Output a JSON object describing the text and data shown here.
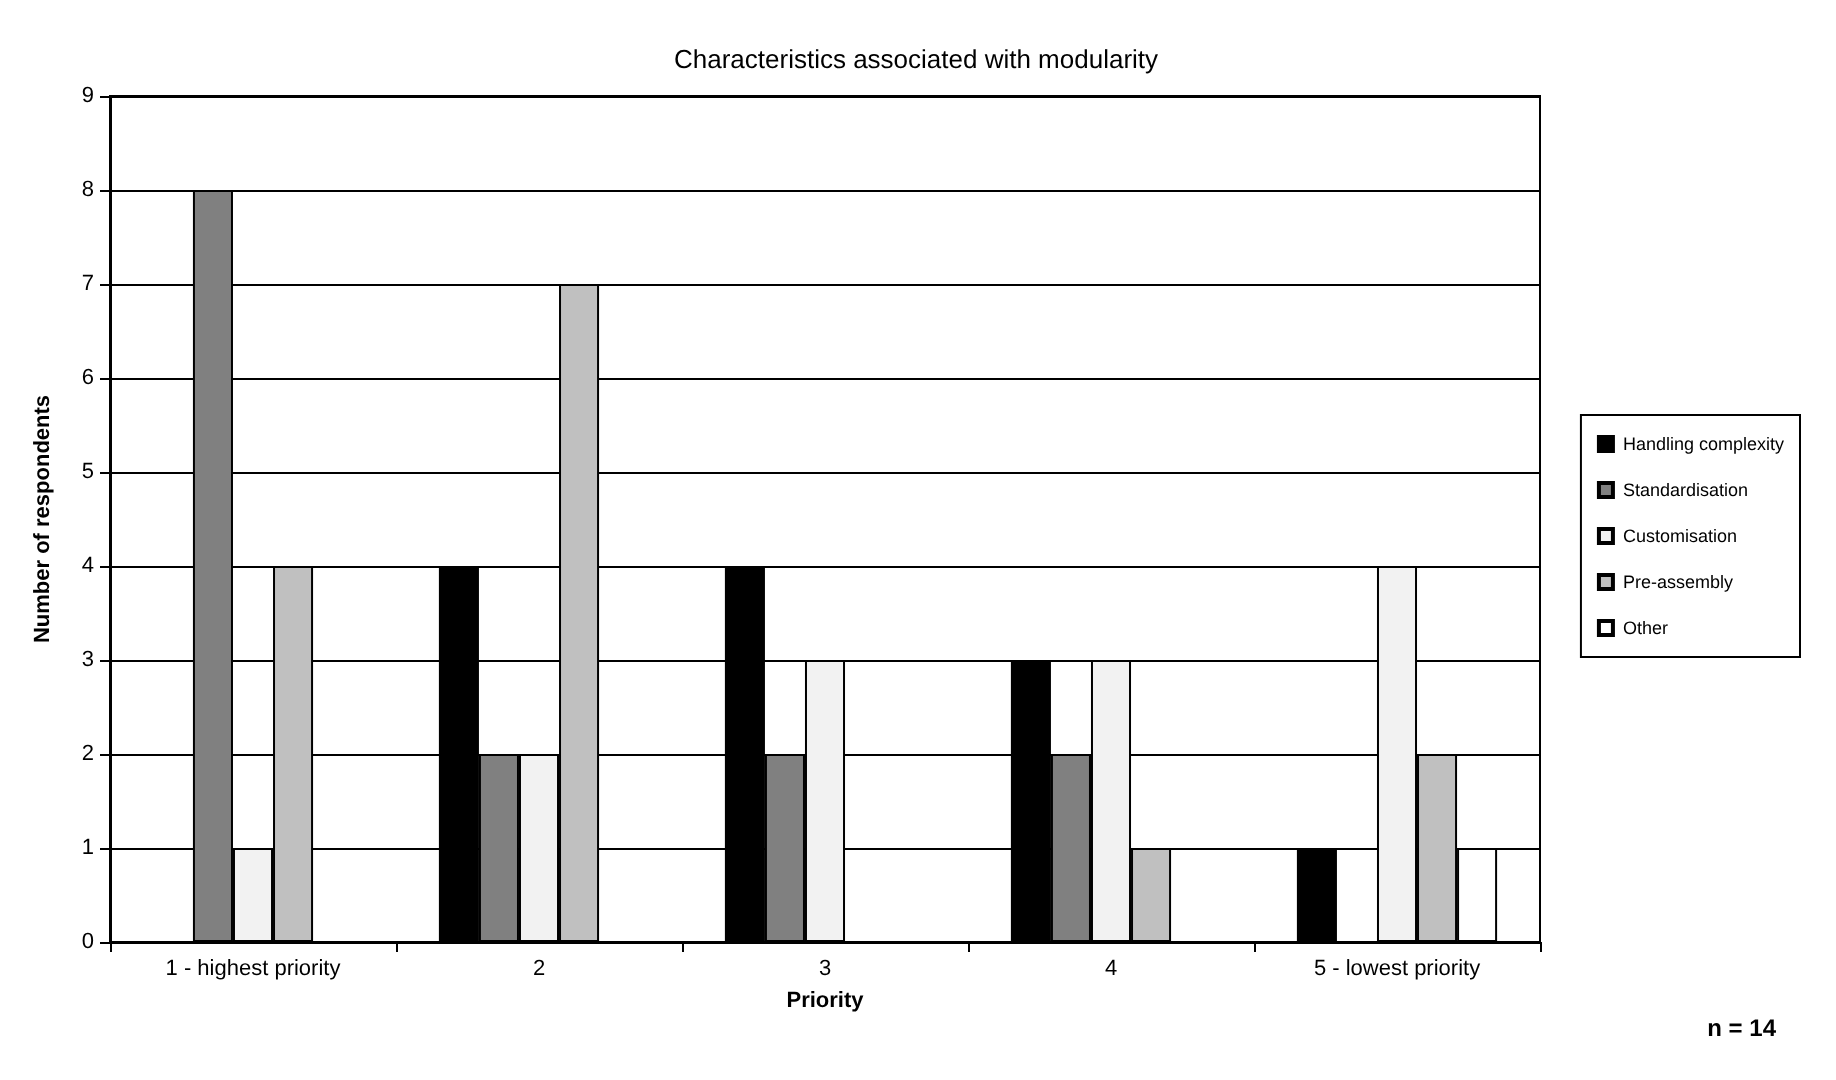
{
  "chart_data": {
    "type": "bar",
    "title": "Characteristics associated with modularity",
    "xlabel": "Priority",
    "ylabel": "Number of respondents",
    "categories": [
      "1 - highest priority",
      "2",
      "3",
      "4",
      "5 - lowest priority"
    ],
    "series": [
      {
        "name": "Handling complexity",
        "color": "#000000",
        "values": [
          0,
          4,
          4,
          3,
          1
        ]
      },
      {
        "name": "Standardisation",
        "color": "#808080",
        "values": [
          8,
          2,
          2,
          2,
          0
        ]
      },
      {
        "name": "Customisation",
        "color": "#f2f2f2",
        "values": [
          1,
          2,
          3,
          3,
          4
        ]
      },
      {
        "name": "Pre-assembly",
        "color": "#c0c0c0",
        "values": [
          4,
          7,
          0,
          1,
          2
        ]
      },
      {
        "name": "Other",
        "color": "#ffffff",
        "values": [
          0,
          0,
          0,
          0,
          1
        ]
      }
    ],
    "ylim": [
      0,
      9
    ],
    "yticks": [
      0,
      1,
      2,
      3,
      4,
      5,
      6,
      7,
      8,
      9
    ],
    "grid": "y",
    "legend": "right",
    "annotations": [
      "n = 14"
    ]
  }
}
